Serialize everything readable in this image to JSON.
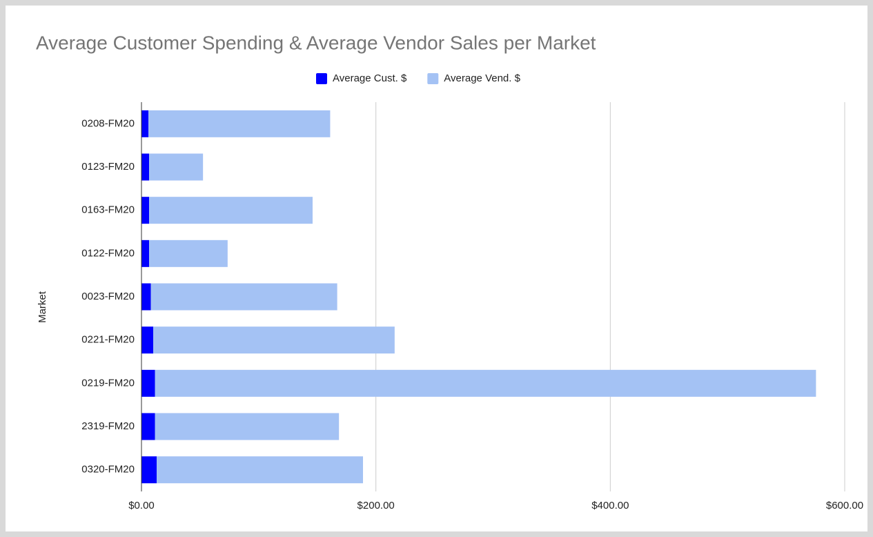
{
  "chart_data": {
    "type": "bar",
    "orientation": "horizontal",
    "stacked": true,
    "title": "Average Customer Spending & Average Vendor Sales per Market",
    "y_label": "Market",
    "categories": [
      "0208-FM20",
      "0123-FM20",
      "0163-FM20",
      "0122-FM20",
      "0023-FM20",
      "0221-FM20",
      "0219-FM20",
      "2319-FM20",
      "0320-FM20"
    ],
    "series": [
      {
        "name": "Average Cust. $",
        "color": "#0000ff",
        "values": [
          6,
          6.5,
          6.5,
          6.5,
          8,
          10,
          11.5,
          11.5,
          13
        ]
      },
      {
        "name": "Average Vend. $",
        "color": "#a4c2f4",
        "values": [
          155,
          46,
          139.5,
          67,
          159,
          206,
          564,
          157,
          176
        ]
      }
    ],
    "xlim": [
      0,
      600
    ],
    "xticks": [
      {
        "value": 0,
        "label": "$0.00"
      },
      {
        "value": 200,
        "label": "$200.00"
      },
      {
        "value": 400,
        "label": "$400.00"
      },
      {
        "value": 600,
        "label": "$600.00"
      }
    ],
    "grid": true,
    "legend": "top"
  }
}
